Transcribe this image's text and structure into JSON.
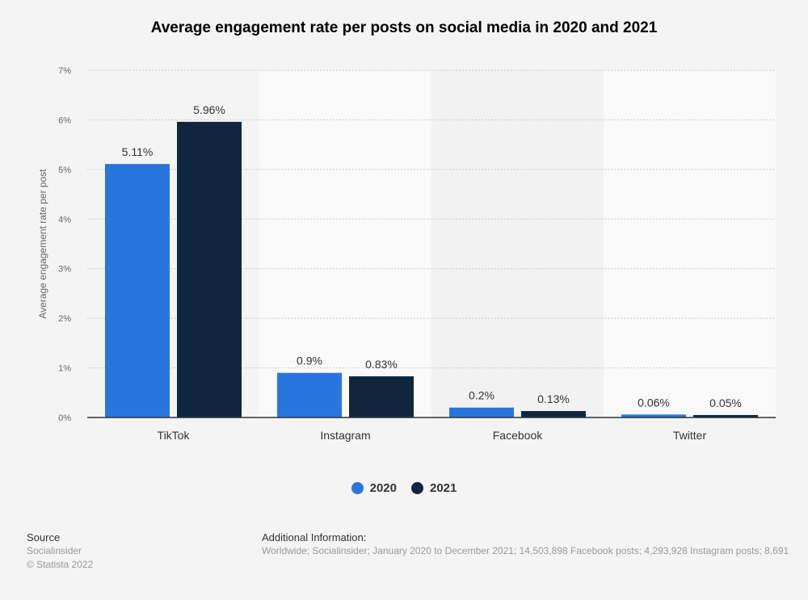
{
  "chart_data": {
    "type": "bar",
    "title": "Average engagement rate per posts on social media in 2020 and 2021",
    "ylabel": "Average engagement rate per post",
    "xlabel": "",
    "ylim": [
      0,
      7
    ],
    "yticks": [
      "0%",
      "1%",
      "2%",
      "3%",
      "4%",
      "5%",
      "6%",
      "7%"
    ],
    "categories": [
      "TikTok",
      "Instagram",
      "Facebook",
      "Twitter"
    ],
    "series": [
      {
        "name": "2020",
        "color": "#2876dd",
        "values": [
          5.11,
          0.9,
          0.2,
          0.06
        ],
        "labels": [
          "5.11%",
          "0.9%",
          "0.2%",
          "0.06%"
        ]
      },
      {
        "name": "2021",
        "color": "#10263e",
        "values": [
          5.96,
          0.83,
          0.13,
          0.05
        ],
        "labels": [
          "5.96%",
          "0.83%",
          "0.13%",
          "0.05%"
        ]
      }
    ],
    "grid": true,
    "legend": "bottom"
  },
  "footer": {
    "source_heading": "Source",
    "source": "Socialinsider",
    "copyright": "© Statista 2022",
    "info_heading": "Additional Information:",
    "info": "Worldwide; Socialinsider; January 2020 to December 2021; 14,503,898 Facebook posts; 4,293,928 Instagram posts; 8,691"
  }
}
